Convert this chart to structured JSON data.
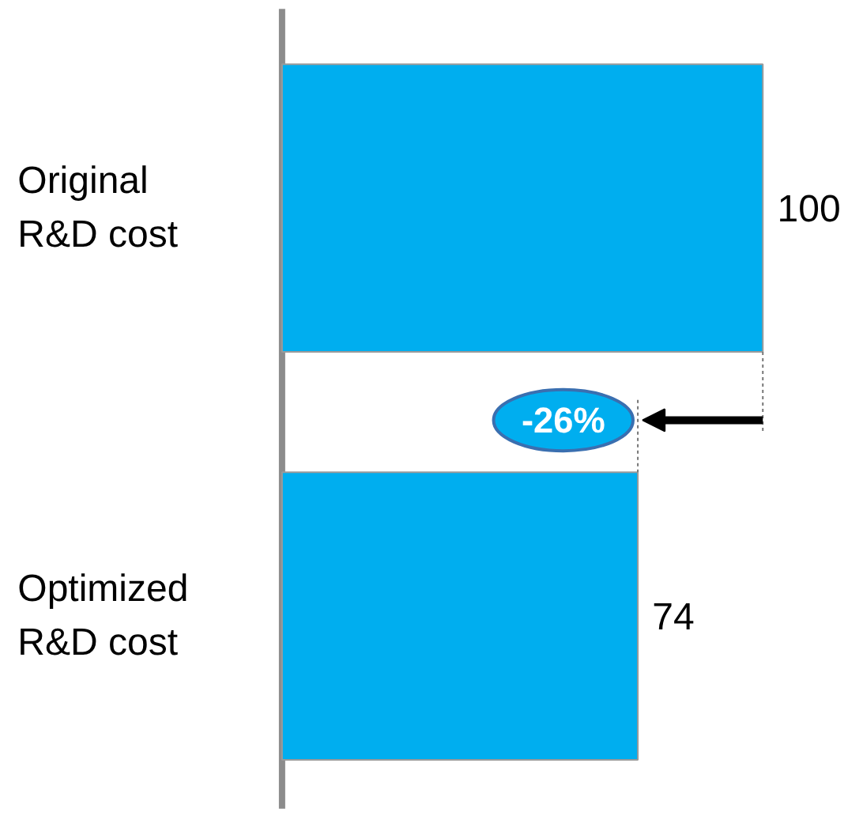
{
  "chart_data": {
    "type": "bar",
    "orientation": "horizontal",
    "categories": [
      "Original\nR&D cost",
      "Optimized\nR&D cost"
    ],
    "values": [
      100,
      74
    ],
    "color": "#00aeef",
    "data_labels": true,
    "annotations": [
      "-26%"
    ],
    "grid": false
  }
}
